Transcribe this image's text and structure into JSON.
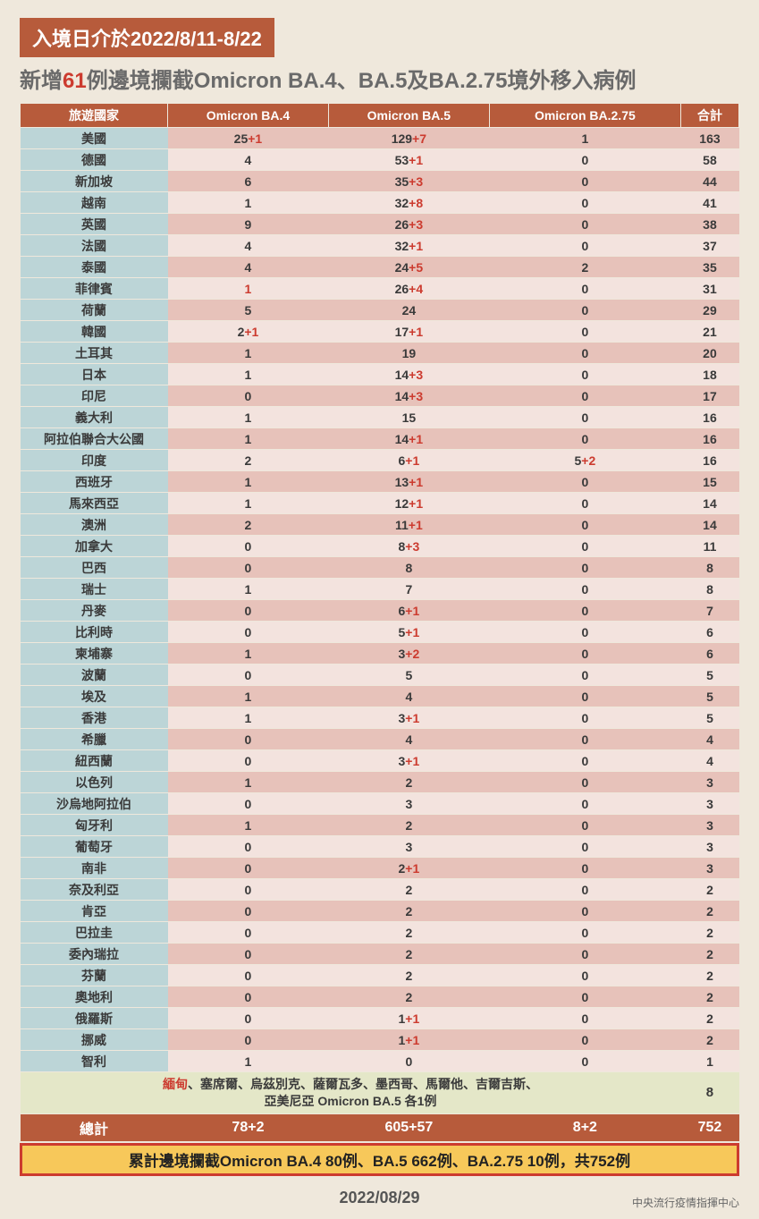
{
  "banner": "入境日介於2022/8/11-8/22",
  "title_pre": "新增",
  "title_hl": "61",
  "title_post": "例邊境攔截Omicron BA.4、BA.5及BA.2.75境外移入病例",
  "columns": [
    "旅遊國家",
    "Omicron BA.4",
    "Omicron BA.5",
    "Omicron BA.2.75",
    "合計"
  ],
  "rows": [
    {
      "c": "美國",
      "v": [
        {
          "b": "25",
          "p": "+1"
        },
        {
          "b": "129",
          "p": "+7"
        },
        {
          "b": "1"
        },
        {
          "b": "163"
        }
      ]
    },
    {
      "c": "德國",
      "v": [
        {
          "b": "4"
        },
        {
          "b": "53",
          "p": "+1"
        },
        {
          "b": "0"
        },
        {
          "b": "58"
        }
      ]
    },
    {
      "c": "新加坡",
      "v": [
        {
          "b": "6"
        },
        {
          "b": "35",
          "p": "+3"
        },
        {
          "b": "0"
        },
        {
          "b": "44"
        }
      ]
    },
    {
      "c": "越南",
      "v": [
        {
          "b": "1"
        },
        {
          "b": "32",
          "p": "+8"
        },
        {
          "b": "0"
        },
        {
          "b": "41"
        }
      ]
    },
    {
      "c": "英國",
      "v": [
        {
          "b": "9"
        },
        {
          "b": "26",
          "p": "+3"
        },
        {
          "b": "0"
        },
        {
          "b": "38"
        }
      ]
    },
    {
      "c": "法國",
      "v": [
        {
          "b": "4"
        },
        {
          "b": "32",
          "p": "+1"
        },
        {
          "b": "0"
        },
        {
          "b": "37"
        }
      ]
    },
    {
      "c": "泰國",
      "v": [
        {
          "b": "4"
        },
        {
          "b": "24",
          "p": "+5"
        },
        {
          "b": "2"
        },
        {
          "b": "35"
        }
      ]
    },
    {
      "c": "菲律賓",
      "v": [
        {
          "b": "1",
          "red": true
        },
        {
          "b": "26",
          "p": "+4"
        },
        {
          "b": "0"
        },
        {
          "b": "31"
        }
      ]
    },
    {
      "c": "荷蘭",
      "v": [
        {
          "b": "5"
        },
        {
          "b": "24"
        },
        {
          "b": "0"
        },
        {
          "b": "29"
        }
      ]
    },
    {
      "c": "韓國",
      "v": [
        {
          "b": "2",
          "p": "+1"
        },
        {
          "b": "17",
          "p": "+1"
        },
        {
          "b": "0"
        },
        {
          "b": "21"
        }
      ]
    },
    {
      "c": "土耳其",
      "v": [
        {
          "b": "1"
        },
        {
          "b": "19"
        },
        {
          "b": "0"
        },
        {
          "b": "20"
        }
      ]
    },
    {
      "c": "日本",
      "v": [
        {
          "b": "1"
        },
        {
          "b": "14",
          "p": "+3"
        },
        {
          "b": "0"
        },
        {
          "b": "18"
        }
      ]
    },
    {
      "c": "印尼",
      "v": [
        {
          "b": "0"
        },
        {
          "b": "14",
          "p": "+3"
        },
        {
          "b": "0"
        },
        {
          "b": "17"
        }
      ]
    },
    {
      "c": "義大利",
      "v": [
        {
          "b": "1"
        },
        {
          "b": "15"
        },
        {
          "b": "0"
        },
        {
          "b": "16"
        }
      ]
    },
    {
      "c": "阿拉伯聯合大公國",
      "v": [
        {
          "b": "1"
        },
        {
          "b": "14",
          "p": "+1"
        },
        {
          "b": "0"
        },
        {
          "b": "16"
        }
      ]
    },
    {
      "c": "印度",
      "v": [
        {
          "b": "2"
        },
        {
          "b": "6",
          "p": "+1"
        },
        {
          "b": "5",
          "p": "+2"
        },
        {
          "b": "16"
        }
      ]
    },
    {
      "c": "西班牙",
      "v": [
        {
          "b": "1"
        },
        {
          "b": "13",
          "p": "+1"
        },
        {
          "b": "0"
        },
        {
          "b": "15"
        }
      ]
    },
    {
      "c": "馬來西亞",
      "v": [
        {
          "b": "1"
        },
        {
          "b": "12",
          "p": "+1"
        },
        {
          "b": "0"
        },
        {
          "b": "14"
        }
      ]
    },
    {
      "c": "澳洲",
      "v": [
        {
          "b": "2"
        },
        {
          "b": "11",
          "p": "+1"
        },
        {
          "b": "0"
        },
        {
          "b": "14"
        }
      ]
    },
    {
      "c": "加拿大",
      "v": [
        {
          "b": "0"
        },
        {
          "b": "8",
          "p": "+3"
        },
        {
          "b": "0"
        },
        {
          "b": "11"
        }
      ]
    },
    {
      "c": "巴西",
      "v": [
        {
          "b": "0"
        },
        {
          "b": "8"
        },
        {
          "b": "0"
        },
        {
          "b": "8"
        }
      ]
    },
    {
      "c": "瑞士",
      "v": [
        {
          "b": "1"
        },
        {
          "b": "7"
        },
        {
          "b": "0"
        },
        {
          "b": "8"
        }
      ]
    },
    {
      "c": "丹麥",
      "v": [
        {
          "b": "0"
        },
        {
          "b": "6",
          "p": "+1"
        },
        {
          "b": "0"
        },
        {
          "b": "7"
        }
      ]
    },
    {
      "c": "比利時",
      "v": [
        {
          "b": "0"
        },
        {
          "b": "5",
          "p": "+1"
        },
        {
          "b": "0"
        },
        {
          "b": "6"
        }
      ]
    },
    {
      "c": "柬埔寨",
      "v": [
        {
          "b": "1"
        },
        {
          "b": "3",
          "p": "+2"
        },
        {
          "b": "0"
        },
        {
          "b": "6"
        }
      ]
    },
    {
      "c": "波蘭",
      "v": [
        {
          "b": "0"
        },
        {
          "b": "5"
        },
        {
          "b": "0"
        },
        {
          "b": "5"
        }
      ]
    },
    {
      "c": "埃及",
      "v": [
        {
          "b": "1"
        },
        {
          "b": "4"
        },
        {
          "b": "0"
        },
        {
          "b": "5"
        }
      ]
    },
    {
      "c": "香港",
      "v": [
        {
          "b": "1"
        },
        {
          "b": "3",
          "p": "+1"
        },
        {
          "b": "0"
        },
        {
          "b": "5"
        }
      ]
    },
    {
      "c": "希臘",
      "v": [
        {
          "b": "0"
        },
        {
          "b": "4"
        },
        {
          "b": "0"
        },
        {
          "b": "4"
        }
      ]
    },
    {
      "c": "紐西蘭",
      "v": [
        {
          "b": "0"
        },
        {
          "b": "3",
          "p": "+1"
        },
        {
          "b": "0"
        },
        {
          "b": "4"
        }
      ]
    },
    {
      "c": "以色列",
      "v": [
        {
          "b": "1"
        },
        {
          "b": "2"
        },
        {
          "b": "0"
        },
        {
          "b": "3"
        }
      ]
    },
    {
      "c": "沙烏地阿拉伯",
      "v": [
        {
          "b": "0"
        },
        {
          "b": "3"
        },
        {
          "b": "0"
        },
        {
          "b": "3"
        }
      ]
    },
    {
      "c": "匈牙利",
      "v": [
        {
          "b": "1"
        },
        {
          "b": "2"
        },
        {
          "b": "0"
        },
        {
          "b": "3"
        }
      ]
    },
    {
      "c": "葡萄牙",
      "v": [
        {
          "b": "0"
        },
        {
          "b": "3"
        },
        {
          "b": "0"
        },
        {
          "b": "3"
        }
      ]
    },
    {
      "c": "南非",
      "v": [
        {
          "b": "0"
        },
        {
          "b": "2",
          "p": "+1"
        },
        {
          "b": "0"
        },
        {
          "b": "3"
        }
      ]
    },
    {
      "c": "奈及利亞",
      "v": [
        {
          "b": "0"
        },
        {
          "b": "2"
        },
        {
          "b": "0"
        },
        {
          "b": "2"
        }
      ]
    },
    {
      "c": "肯亞",
      "v": [
        {
          "b": "0"
        },
        {
          "b": "2"
        },
        {
          "b": "0"
        },
        {
          "b": "2"
        }
      ]
    },
    {
      "c": "巴拉圭",
      "v": [
        {
          "b": "0"
        },
        {
          "b": "2"
        },
        {
          "b": "0"
        },
        {
          "b": "2"
        }
      ]
    },
    {
      "c": "委內瑞拉",
      "v": [
        {
          "b": "0"
        },
        {
          "b": "2"
        },
        {
          "b": "0"
        },
        {
          "b": "2"
        }
      ]
    },
    {
      "c": "芬蘭",
      "v": [
        {
          "b": "0"
        },
        {
          "b": "2"
        },
        {
          "b": "0"
        },
        {
          "b": "2"
        }
      ]
    },
    {
      "c": "奧地利",
      "v": [
        {
          "b": "0"
        },
        {
          "b": "2"
        },
        {
          "b": "0"
        },
        {
          "b": "2"
        }
      ]
    },
    {
      "c": "俄羅斯",
      "v": [
        {
          "b": "0"
        },
        {
          "b": "1",
          "p": "+1"
        },
        {
          "b": "0"
        },
        {
          "b": "2"
        }
      ]
    },
    {
      "c": "挪威",
      "v": [
        {
          "b": "0"
        },
        {
          "b": "1",
          "p": "+1"
        },
        {
          "b": "0"
        },
        {
          "b": "2"
        }
      ]
    },
    {
      "c": "智利",
      "v": [
        {
          "b": "1"
        },
        {
          "b": "0"
        },
        {
          "b": "0"
        },
        {
          "b": "1"
        }
      ]
    }
  ],
  "others_hl": "緬甸",
  "others_line1_rest": "、塞席爾、烏茲別克、薩爾瓦多、墨西哥、馬爾他、吉爾吉斯、",
  "others_line2": "亞美尼亞 Omicron BA.5 各1例",
  "others_total": "8",
  "totals_label": "總計",
  "totals": [
    {
      "b": "78",
      "p": "+2"
    },
    {
      "b": "605",
      "p": "+57"
    },
    {
      "b": "8",
      "p": "+2"
    },
    {
      "b": "752"
    }
  ],
  "summary": "累計邊境攔截Omicron BA.4 80例、BA.5 662例、BA.2.75 10例，共752例",
  "footer_date": "2022/08/29",
  "footer_src": "中央流行疫情指揮中心",
  "style": {
    "bg": "#efe8dc",
    "banner": "#b75b3b",
    "header": "#b75b3b",
    "country_bg": "#bcd5d7",
    "row_a": "#e7c2ba",
    "row_b": "#f3e3de",
    "others_bg": "#e4e7c8",
    "summary_border": "#cc3b2f",
    "summary_bg": "#f7c85a",
    "red": "#cc3b2f"
  }
}
